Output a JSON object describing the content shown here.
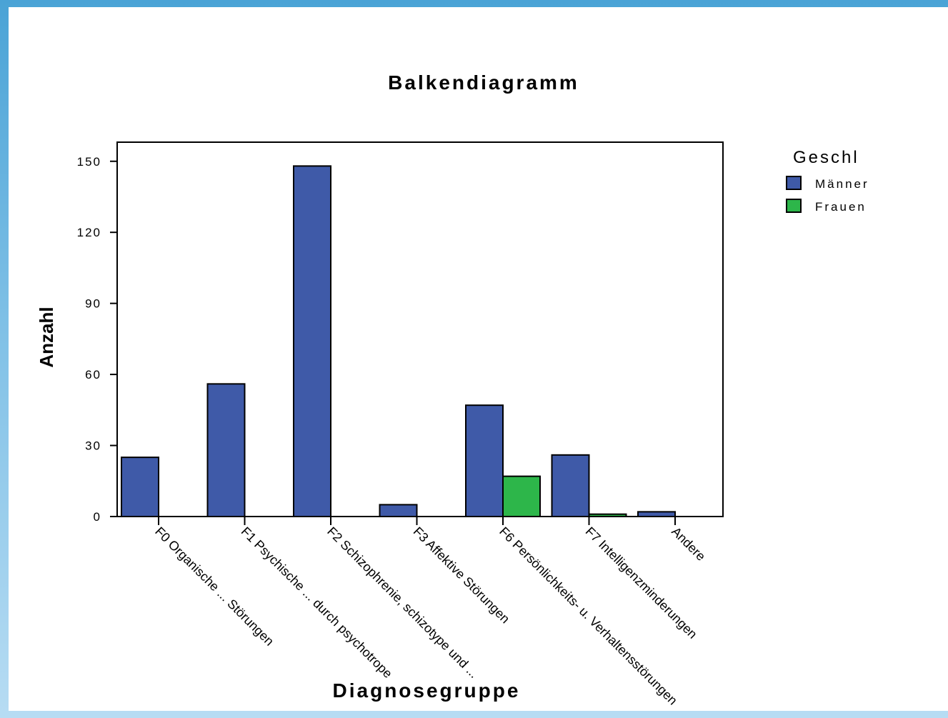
{
  "chart_data": {
    "type": "bar",
    "title": "Balkendiagramm",
    "xlabel": "Diagnosegruppe",
    "ylabel": "Anzahl",
    "ylim": [
      0,
      157.5
    ],
    "yticks": [
      0,
      30,
      60,
      90,
      120,
      150
    ],
    "grid": false,
    "legend_title": "Geschl",
    "legend_position": "top-right",
    "categories": [
      "F0 Organische ... Störungen",
      "F1 Psychische ... durch psychotrope",
      "F2 Schizophrenie, schizotype und ...",
      "F3 Affektive Störungen",
      "F6 Persönlichkeits- u. Verhaltensstörungen",
      "F7 Intelligenzminderungen",
      "Andere"
    ],
    "series": [
      {
        "name": "Männer",
        "color": "#3f5aa8",
        "values": [
          25,
          56,
          148,
          5,
          47,
          26,
          2
        ]
      },
      {
        "name": "Frauen",
        "color": "#2db64a",
        "values": [
          0,
          0,
          0,
          0,
          17,
          1,
          0
        ]
      }
    ]
  }
}
